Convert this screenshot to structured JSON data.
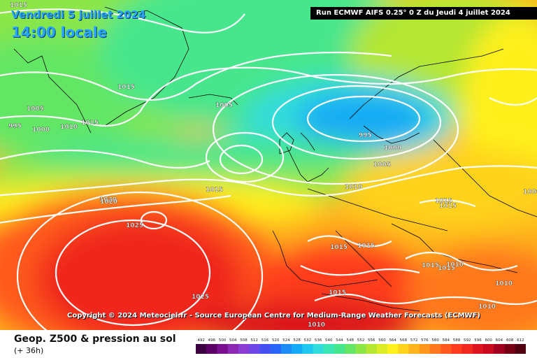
{
  "header": {
    "date": "Vendredi 5 juillet 2024",
    "time": "14:00 locale",
    "run": "Run ECMWF AIFS 0.25° 0 Z du Jeudi 4 juillet 2024"
  },
  "copyright": "Copyright © 2024 Meteociel.fr - Source European Centre for Medium-Range Weather Forecasts (ECMWF)",
  "footer": {
    "title": "Geop. Z500 & pression au sol",
    "lead": "(+ 36h)"
  },
  "legend": {
    "ticks": [
      "492",
      "496",
      "500",
      "504",
      "508",
      "512",
      "516",
      "520",
      "524",
      "528",
      "532",
      "536",
      "540",
      "544",
      "548",
      "552",
      "556",
      "560",
      "564",
      "568",
      "572",
      "576",
      "580",
      "584",
      "588",
      "592",
      "596",
      "600",
      "604",
      "608",
      "612"
    ],
    "colors": [
      "#3c0040",
      "#5c0066",
      "#7a1090",
      "#8c28b4",
      "#8c3cd2",
      "#6e46e6",
      "#4650f0",
      "#2864f5",
      "#1e8cf5",
      "#14aaf5",
      "#1ec8f0",
      "#32dcdc",
      "#3ce6b4",
      "#46e68c",
      "#64e664",
      "#8ce646",
      "#b4e632",
      "#dcec28",
      "#fff01e",
      "#ffd21e",
      "#ffb41e",
      "#ff961e",
      "#ff781e",
      "#ff5a1e",
      "#ff3c1e",
      "#f0281e",
      "#dc141e",
      "#c80a1e",
      "#a0001e",
      "#780014",
      "#500010"
    ]
  },
  "pressure_labels": [
    {
      "t": "1015"
    },
    {
      "t": "1020"
    },
    {
      "t": "1015"
    },
    {
      "t": "1005"
    },
    {
      "t": "995"
    },
    {
      "t": "1000"
    },
    {
      "t": "1010"
    },
    {
      "t": "1015"
    },
    {
      "t": "1005"
    },
    {
      "t": "995"
    },
    {
      "t": "1000"
    },
    {
      "t": "1005"
    },
    {
      "t": "1010"
    },
    {
      "t": "1015"
    },
    {
      "t": "1020"
    },
    {
      "t": "1025"
    },
    {
      "t": "1015"
    },
    {
      "t": "1015"
    },
    {
      "t": "1015"
    },
    {
      "t": "1015"
    },
    {
      "t": "1015"
    },
    {
      "t": "1015"
    },
    {
      "t": "1010"
    },
    {
      "t": "1015"
    },
    {
      "t": "1025"
    },
    {
      "t": "1010"
    },
    {
      "t": "1010"
    },
    {
      "t": "1010"
    },
    {
      "t": "1000"
    }
  ]
}
